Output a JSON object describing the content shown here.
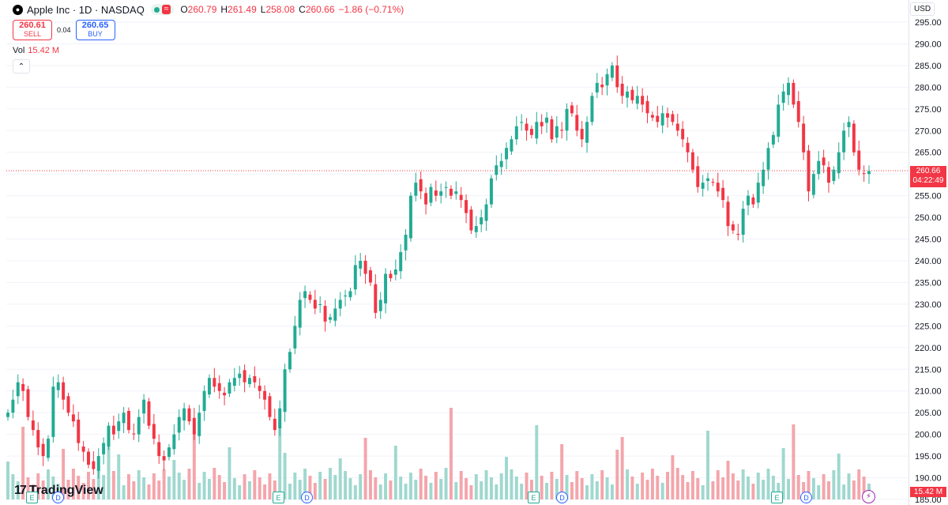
{
  "header": {
    "logo_glyph": "●",
    "title": "Apple Inc · 1D · NASDAQ",
    "status_glyph": "≈",
    "ohlc": [
      {
        "k": "O",
        "v": "260.79"
      },
      {
        "k": "H",
        "v": "261.49"
      },
      {
        "k": "L",
        "v": "258.08"
      },
      {
        "k": "C",
        "v": "260.66"
      }
    ],
    "change": "−1.86 (−0.71%)"
  },
  "trade": {
    "sell_price": "260.61",
    "sell_label": "SELL",
    "spread": "0.04",
    "buy_price": "260.65",
    "buy_label": "BUY"
  },
  "volume": {
    "label": "Vol",
    "value": "15.42 M",
    "tag": "15.42 M"
  },
  "collapse_glyph": "⌃",
  "currency": "USD",
  "last_price": {
    "price": "260.66",
    "countdown": "04:22:49"
  },
  "brand": {
    "mark": "17",
    "name": "TradingView"
  },
  "events": [
    {
      "type": "E",
      "x": 33
    },
    {
      "type": "D",
      "x": 66
    },
    {
      "type": "E",
      "x": 345
    },
    {
      "type": "D",
      "x": 381
    },
    {
      "type": "E",
      "x": 668
    },
    {
      "type": "D",
      "x": 704
    },
    {
      "type": "E",
      "x": 976
    },
    {
      "type": "D",
      "x": 1013
    }
  ],
  "flash_glyph": "⚡",
  "colors": {
    "up": "#22ab94",
    "down": "#f23645",
    "up_vol": "#9fd8cf",
    "down_vol": "#f4a5ab",
    "grid": "#f0f3fa"
  },
  "chart_data": {
    "type": "candlestick",
    "y_axis": {
      "min": 185,
      "max": 295,
      "step": 5,
      "side": "right"
    },
    "y_tick_labels": [
      "185.00",
      "190.00",
      "195.00",
      "200.00",
      "205.00",
      "210.00",
      "215.00",
      "220.00",
      "225.00",
      "230.00",
      "235.00",
      "240.00",
      "245.00",
      "250.00",
      "255.00",
      "260.00",
      "265.00",
      "270.00",
      "275.00",
      "280.00",
      "285.00",
      "290.00",
      "295.00"
    ],
    "last_price": 260.66,
    "volume_last": "15.42M",
    "close": [
      205,
      208,
      212,
      210,
      204,
      201,
      197,
      195,
      199,
      211,
      212,
      208,
      205,
      203,
      198,
      196,
      193,
      192,
      195,
      198,
      202,
      200,
      203,
      205,
      201,
      200,
      204,
      208,
      202,
      199,
      195,
      194,
      197,
      200,
      204,
      206,
      203,
      200,
      205,
      210,
      213,
      211,
      210,
      209,
      212,
      213,
      214,
      212,
      213,
      212,
      210,
      208,
      204,
      201,
      206,
      215,
      219,
      225,
      231,
      233,
      231,
      229,
      230,
      226,
      227,
      229,
      231,
      232,
      233,
      239,
      240,
      237,
      235,
      228,
      231,
      237,
      236,
      238,
      242,
      246,
      255,
      258,
      256,
      253,
      257,
      255,
      256,
      257,
      255,
      256,
      254,
      251,
      247,
      248,
      250,
      253,
      259,
      262,
      263,
      266,
      268,
      271,
      272,
      270,
      269,
      272,
      271,
      273,
      268,
      271,
      270,
      275,
      274,
      270,
      268,
      272,
      278,
      281,
      280,
      283,
      285,
      280,
      278,
      279,
      277,
      278,
      276,
      274,
      273,
      272,
      274,
      273,
      272,
      270,
      268,
      265,
      261,
      257,
      258,
      259,
      258,
      256,
      254,
      248,
      247,
      246,
      252,
      255,
      253,
      258,
      261,
      266,
      269,
      276,
      279,
      281,
      276,
      272,
      265,
      256,
      260,
      263,
      262,
      258,
      261,
      265,
      270,
      272,
      265,
      261,
      260,
      260.66
    ]
  }
}
